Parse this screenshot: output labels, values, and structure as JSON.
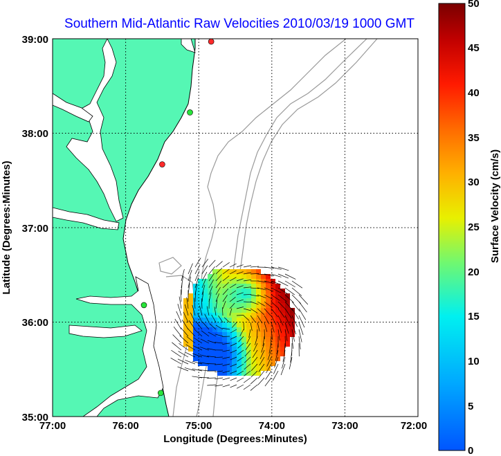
{
  "title": "Southern Mid-Atlantic Raw Velocities 2010/03/19 1000 GMT",
  "x_axis": {
    "label": "Longitude (Degrees:Minutes)",
    "ticks": [
      "77:00",
      "76:00",
      "75:00",
      "74:00",
      "73:00",
      "72:00"
    ]
  },
  "y_axis": {
    "label": "Latitude (Degrees:Minutes)",
    "ticks": [
      "39:00",
      "38:00",
      "37:00",
      "36:00",
      "35:00"
    ]
  },
  "colorbar": {
    "label": "Surface Velocity (cm/s)",
    "ticks": [
      "50",
      "45",
      "40",
      "35",
      "30",
      "25",
      "20",
      "15",
      "10",
      "5",
      "0"
    ],
    "range": [
      0,
      50
    ]
  },
  "map_extent": {
    "lon": [
      -77,
      -72
    ],
    "lat": [
      35,
      39
    ]
  },
  "colors": {
    "land": "#55f7b4",
    "coast": "#000000",
    "bathymetry": "#999999",
    "title": "#0000ff"
  },
  "stations": [
    {
      "lon": -74.83,
      "lat": 38.97,
      "color": "#ff2a2a"
    },
    {
      "lon": -75.12,
      "lat": 38.22,
      "color": "#28e43a"
    },
    {
      "lon": -75.5,
      "lat": 37.67,
      "color": "#ff2a2a"
    },
    {
      "lon": -75.75,
      "lat": 36.18,
      "color": "#28e43a"
    },
    {
      "lon": -75.52,
      "lat": 35.25,
      "color": "#28e43a"
    }
  ]
}
